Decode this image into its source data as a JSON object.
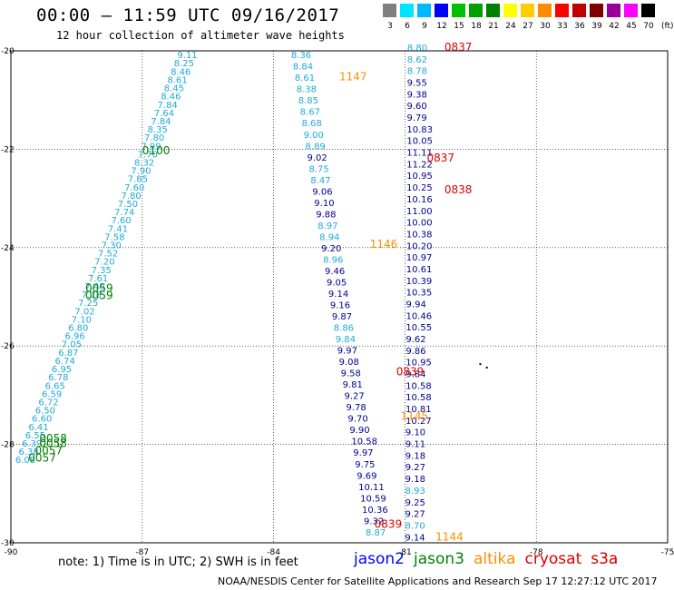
{
  "title": "00:00 – 11:59 UTC 09/16/2017",
  "subtitle": "12 hour collection of altimeter wave heights",
  "color_scale": {
    "unit": "(ft)",
    "bins": [
      {
        "label": "3",
        "color": "#808080"
      },
      {
        "label": "6",
        "color": "#00e5ff"
      },
      {
        "label": "9",
        "color": "#00b8ff"
      },
      {
        "label": "12",
        "color": "#0000ff"
      },
      {
        "label": "15",
        "color": "#00c000"
      },
      {
        "label": "18",
        "color": "#00a000"
      },
      {
        "label": "21",
        "color": "#008000"
      },
      {
        "label": "24",
        "color": "#ffff00"
      },
      {
        "label": "27",
        "color": "#ffcc00"
      },
      {
        "label": "30",
        "color": "#ff8c00"
      },
      {
        "label": "33",
        "color": "#ff0000"
      },
      {
        "label": "36",
        "color": "#c00000"
      },
      {
        "label": "39",
        "color": "#800000"
      },
      {
        "label": "42",
        "color": "#990099"
      },
      {
        "label": "45",
        "color": "#ff00ff"
      },
      {
        "label": "70",
        "color": "#000000"
      }
    ]
  },
  "axes": {
    "lon_ticks": [
      "-90",
      "-87",
      "-84",
      "-81",
      "-78",
      "-75"
    ],
    "lat_ticks": [
      "-20",
      "-22",
      "-24",
      "-26",
      "-28",
      "-30"
    ]
  },
  "series_colors": {
    "cyan": "#1eaad8",
    "blue": "#000090",
    "jason2": "#0000ff",
    "jason3": "#008000",
    "altika": "#ff8c00",
    "cryosat": "#dd0000",
    "s3a": "#cc0000"
  },
  "tracks": {
    "west_cyan": {
      "values": [
        "9.11",
        "8.25",
        "8.46",
        "8.61",
        "8.45",
        "8.46",
        "7.84",
        "7.64",
        "7.84",
        "8.35",
        "7.80",
        "7.99",
        "7.70",
        "8.32",
        "7.90",
        "7.85",
        "7.60",
        "7.80",
        "7.50",
        "7.74",
        "7.60",
        "7.41",
        "7.58",
        "7.30",
        "7.52",
        "7.20",
        "7.35",
        "7.61",
        "7.40",
        "7.18",
        "7.25",
        "7.02",
        "7.10",
        "6.80",
        "6.96",
        "7.05",
        "6.87",
        "6.74",
        "6.95",
        "6.78",
        "6.65",
        "6.59",
        "6.72",
        "6.50",
        "6.60",
        "6.41",
        "6.55",
        "6.39",
        "6.38",
        "6.08"
      ]
    },
    "west_times": [
      {
        "label": "0100",
        "lon": -87.0,
        "lat": -22.1,
        "color": "jason3"
      },
      {
        "label": "0059",
        "lon": -88.3,
        "lat": -24.9,
        "color": "jason3"
      },
      {
        "label": "0059",
        "lon": -88.3,
        "lat": -25.05,
        "color": "jason3"
      },
      {
        "label": "0058",
        "lon": -89.35,
        "lat": -27.95,
        "color": "jason3"
      },
      {
        "label": "0058",
        "lon": -89.35,
        "lat": -28.05,
        "color": "jason3"
      },
      {
        "label": "0057",
        "lon": -89.45,
        "lat": -28.2,
        "color": "jason3"
      },
      {
        "label": "0057",
        "lon": -89.6,
        "lat": -28.35,
        "color": "jason3"
      }
    ],
    "mid_cyan": {
      "values": [
        "8.36",
        "8.84",
        "8.61",
        "8.38",
        "8.85",
        "8.67",
        "8.68",
        "9.00",
        "8.89",
        "9.02",
        "8.75",
        "8.47",
        "9.06",
        "9.10",
        "9.88",
        "8.97",
        "8.94",
        "9.20",
        "8.96",
        "9.46",
        "9.05",
        "9.14",
        "9.16",
        "9.87",
        "8.86",
        "9.84",
        "9.97",
        "9.08",
        "9.58",
        "9.81",
        "9.27",
        "9.78",
        "9.70",
        "9.90",
        "10.58",
        "9.97",
        "9.75",
        "9.69",
        "10.11",
        "10.59",
        "10.36",
        "9.32",
        "8.87"
      ]
    },
    "mid_cyan_colors": [
      "cyan",
      "cyan",
      "cyan",
      "cyan",
      "cyan",
      "cyan",
      "cyan",
      "cyan",
      "cyan",
      "blue",
      "cyan",
      "cyan",
      "blue",
      "blue",
      "blue",
      "cyan",
      "cyan",
      "blue",
      "cyan",
      "blue",
      "blue",
      "blue",
      "blue",
      "blue",
      "cyan",
      "cyan",
      "blue",
      "blue",
      "blue",
      "blue",
      "blue",
      "blue",
      "blue",
      "blue",
      "blue",
      "blue",
      "blue",
      "blue",
      "blue",
      "blue",
      "blue",
      "blue",
      "cyan"
    ],
    "east_blue": {
      "values": [
        "8.80",
        "8.62",
        "8.78",
        "9.55",
        "9.38",
        "9.60",
        "9.79",
        "10.83",
        "10.05",
        "11.11",
        "11.22",
        "10.95",
        "10.25",
        "10.16",
        "11.00",
        "10.00",
        "10.38",
        "10.20",
        "10.97",
        "10.61",
        "10.39",
        "10.35",
        "9.94",
        "10.46",
        "10.55",
        "9.62",
        "9.86",
        "10.95",
        "9.84",
        "10.58",
        "10.58",
        "10.81",
        "10.27",
        "9.10",
        "9.11",
        "9.18",
        "9.27",
        "9.18",
        "8.93",
        "9.25",
        "9.27",
        "8.70",
        "9.14"
      ]
    },
    "east_blue_colors": [
      "cyan",
      "cyan",
      "cyan",
      "blue",
      "blue",
      "blue",
      "blue",
      "blue",
      "blue",
      "blue",
      "blue",
      "blue",
      "blue",
      "blue",
      "blue",
      "blue",
      "blue",
      "blue",
      "blue",
      "blue",
      "blue",
      "blue",
      "blue",
      "blue",
      "blue",
      "blue",
      "blue",
      "blue",
      "blue",
      "blue",
      "blue",
      "blue",
      "blue",
      "blue",
      "blue",
      "blue",
      "blue",
      "blue",
      "cyan",
      "blue",
      "blue",
      "cyan",
      "blue"
    ],
    "times": [
      {
        "label": "0837",
        "lon": -80.1,
        "lat": -20.0,
        "color": "cryosat"
      },
      {
        "label": "1147",
        "lon": -82.5,
        "lat": -20.6,
        "color": "altika"
      },
      {
        "label": "0837",
        "lon": -80.5,
        "lat": -22.25,
        "color": "cryosat"
      },
      {
        "label": "0838",
        "lon": -80.1,
        "lat": -22.9,
        "color": "cryosat"
      },
      {
        "label": "1146",
        "lon": -81.8,
        "lat": -24.0,
        "color": "altika"
      },
      {
        "label": "0839",
        "lon": -81.2,
        "lat": -26.6,
        "color": "cryosat"
      },
      {
        "label": "1145",
        "lon": -81.1,
        "lat": -27.5,
        "color": "altika"
      },
      {
        "label": "0839",
        "lon": -81.7,
        "lat": -29.7,
        "color": "cryosat"
      },
      {
        "label": "1144",
        "lon": -80.3,
        "lat": -29.95,
        "color": "altika"
      }
    ]
  },
  "note": "note: 1) Time is in UTC; 2) SWH is in feet",
  "legend": [
    {
      "label": "jason2",
      "color": "jason2"
    },
    {
      "label": "jason3",
      "color": "jason3"
    },
    {
      "label": "altika",
      "color": "altika"
    },
    {
      "label": "cryosat",
      "color": "cryosat"
    },
    {
      "label": "s3a",
      "color": "s3a"
    }
  ],
  "credit": "NOAA/NESDIS Center for Satellite Applications and Research    Sep 17 12:27:12 UTC 2017"
}
